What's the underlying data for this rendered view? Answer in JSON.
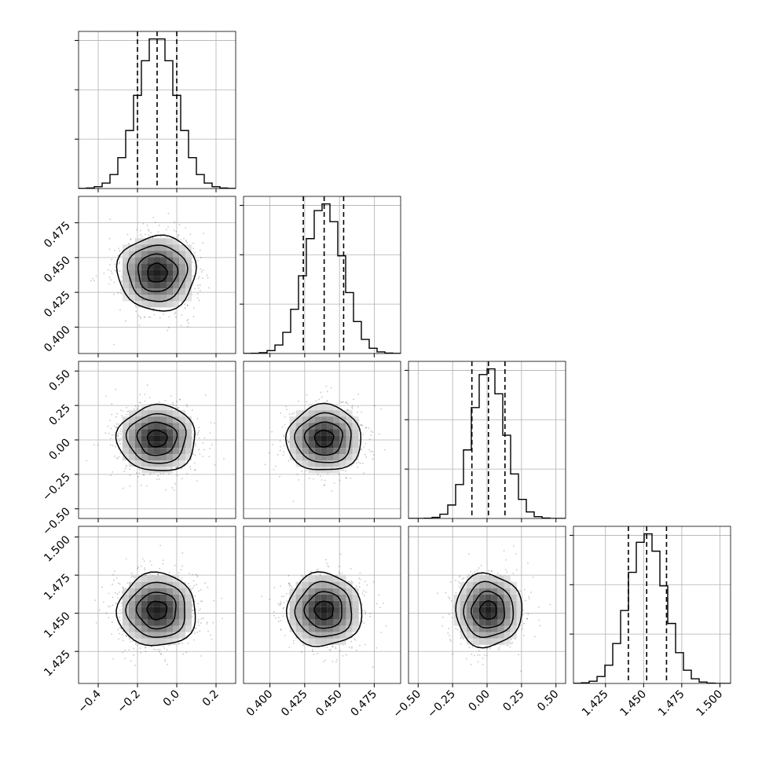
{
  "chart_data": {
    "type": "corner",
    "title": "",
    "grid": true,
    "quantiles": [
      0.16,
      0.5,
      0.84
    ],
    "parameters": [
      {
        "mean": -0.1,
        "sd": 0.1,
        "quantiles": [
          -0.2,
          -0.1,
          0.0
        ],
        "range": [
          -0.5,
          0.3
        ],
        "ticks": [
          -0.4,
          -0.2,
          0.0,
          0.2
        ],
        "tick_labels": [
          "−0.4",
          "−0.2",
          "0.0",
          "0.2"
        ]
      },
      {
        "mean": 0.439,
        "sd": 0.0135,
        "quantiles": [
          0.424,
          0.439,
          0.453
        ],
        "range": [
          0.381,
          0.494
        ],
        "ticks": [
          0.4,
          0.425,
          0.45,
          0.475
        ],
        "tick_labels": [
          "0.400",
          "0.425",
          "0.450",
          "0.475"
        ]
      },
      {
        "mean": 0.01,
        "sd": 0.12,
        "quantiles": [
          -0.11,
          0.01,
          0.13
        ],
        "range": [
          -0.57,
          0.57
        ],
        "ticks": [
          -0.5,
          -0.25,
          0.0,
          0.25,
          0.5
        ],
        "tick_labels": [
          "−0.50",
          "−0.25",
          "0.00",
          "0.25",
          "0.50"
        ]
      },
      {
        "mean": 1.452,
        "sd": 0.012,
        "quantiles": [
          1.44,
          1.452,
          1.465
        ],
        "range": [
          1.404,
          1.507
        ],
        "ticks": [
          1.425,
          1.45,
          1.475,
          1.5
        ],
        "tick_labels": [
          "1.425",
          "1.450",
          "1.475",
          "1.500"
        ]
      }
    ],
    "contour_levels_sigma": [
      0.5,
      1.0,
      1.5,
      2.0
    ]
  }
}
